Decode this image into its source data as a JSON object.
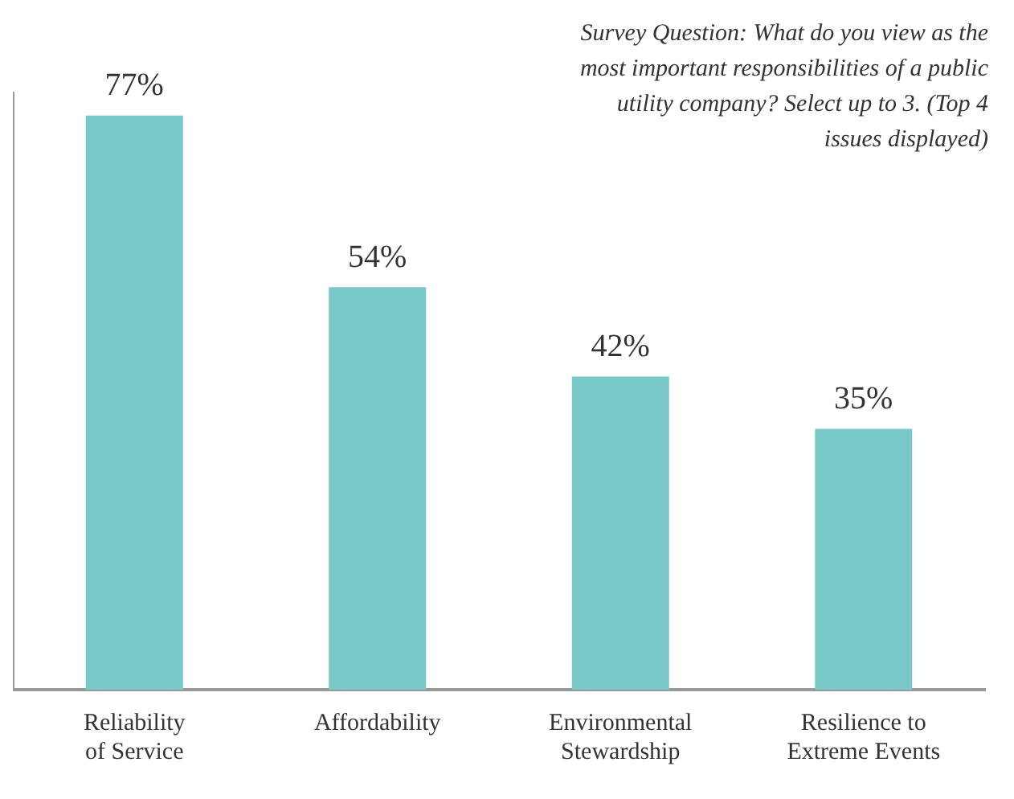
{
  "chart_data": {
    "type": "bar",
    "title": "Survey Question: What do you view as the most important responsibilities of a public utility company? Select up to 3. (Top 4 issues displayed)",
    "categories": [
      "Reliability\nof Service",
      "Affordability",
      "Environmental\nStewardship",
      "Resilience to\nExtreme Events"
    ],
    "values": [
      77,
      54,
      42,
      35
    ],
    "colors": [
      "#7ac9c9",
      "#7ac9c9",
      "#7ac9c9",
      "#7ac9c9"
    ],
    "value_labels": [
      "77%",
      "54%",
      "42%",
      "35%"
    ],
    "tick_labels": "x",
    "grid": false,
    "legend": false
  }
}
